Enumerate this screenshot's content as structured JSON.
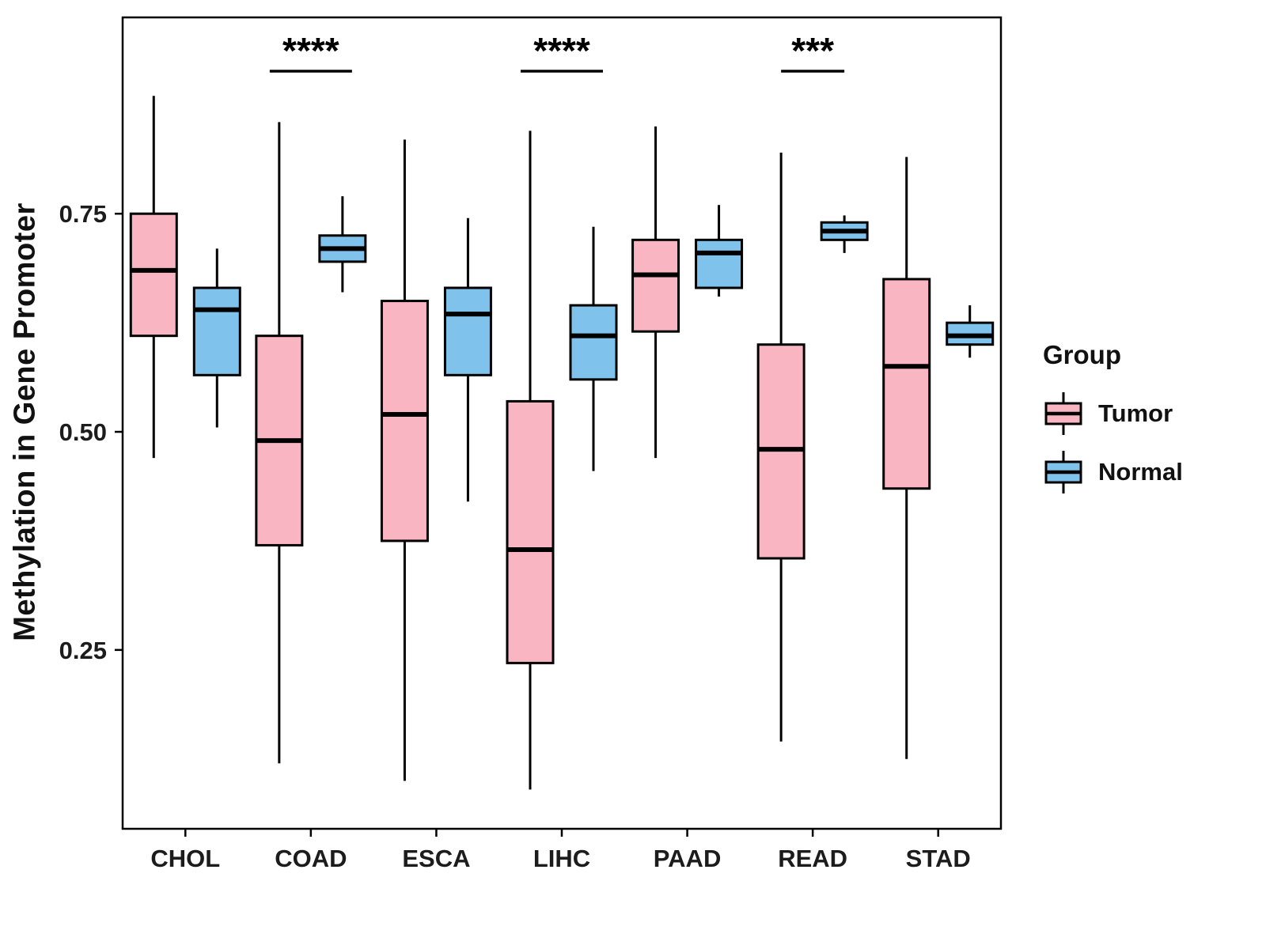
{
  "y_axis": {
    "label": "Methylation in Gene Promoter",
    "ticks": [
      0.25,
      0.5,
      0.75
    ],
    "tick_labels": [
      "0.25",
      "0.50",
      "0.75"
    ]
  },
  "x_axis": {
    "tick_labels": [
      "CHOL",
      "COAD",
      "ESCA",
      "LIHC",
      "PAAD",
      "READ",
      "STAD"
    ]
  },
  "legend": {
    "title": "Group",
    "items": [
      {
        "label": "Tumor",
        "color": "#F9B5C2"
      },
      {
        "label": "Normal",
        "color": "#7FC2EC"
      }
    ]
  },
  "colors": {
    "box_outline": "#000000",
    "median_line": "#000000",
    "axis_text": "#1c1c1c",
    "panel_border": "#000000",
    "tumor_fill": "#F9B5C2",
    "normal_fill": "#7FC2EC"
  },
  "chart_data": {
    "type": "boxplot",
    "title": "",
    "xlabel": "",
    "ylabel": "Methylation in Gene Promoter",
    "legend_position": "right",
    "grid": false,
    "ylim": [
      0.045,
      0.975
    ],
    "y_ticks": [
      0.25,
      0.5,
      0.75
    ],
    "categories": [
      "CHOL",
      "COAD",
      "ESCA",
      "LIHC",
      "PAAD",
      "READ",
      "STAD"
    ],
    "series": [
      {
        "name": "Tumor",
        "color": "#F9B5C2",
        "boxes": [
          {
            "category": "CHOL",
            "low": 0.47,
            "q1": 0.61,
            "median": 0.685,
            "q3": 0.75,
            "high": 0.885
          },
          {
            "category": "COAD",
            "low": 0.12,
            "q1": 0.37,
            "median": 0.49,
            "q3": 0.61,
            "high": 0.855
          },
          {
            "category": "ESCA",
            "low": 0.1,
            "q1": 0.375,
            "median": 0.52,
            "q3": 0.65,
            "high": 0.835
          },
          {
            "category": "LIHC",
            "low": 0.09,
            "q1": 0.235,
            "median": 0.365,
            "q3": 0.535,
            "high": 0.845
          },
          {
            "category": "PAAD",
            "low": 0.47,
            "q1": 0.615,
            "median": 0.68,
            "q3": 0.72,
            "high": 0.85
          },
          {
            "category": "READ",
            "low": 0.145,
            "q1": 0.355,
            "median": 0.48,
            "q3": 0.6,
            "high": 0.82
          },
          {
            "category": "STAD",
            "low": 0.125,
            "q1": 0.435,
            "median": 0.575,
            "q3": 0.675,
            "high": 0.815
          }
        ]
      },
      {
        "name": "Normal",
        "color": "#7FC2EC",
        "boxes": [
          {
            "category": "CHOL",
            "low": 0.505,
            "q1": 0.565,
            "median": 0.64,
            "q3": 0.665,
            "high": 0.71
          },
          {
            "category": "COAD",
            "low": 0.66,
            "q1": 0.695,
            "median": 0.71,
            "q3": 0.725,
            "high": 0.77
          },
          {
            "category": "ESCA",
            "low": 0.42,
            "q1": 0.565,
            "median": 0.635,
            "q3": 0.665,
            "high": 0.745
          },
          {
            "category": "LIHC",
            "low": 0.455,
            "q1": 0.56,
            "median": 0.61,
            "q3": 0.645,
            "high": 0.735
          },
          {
            "category": "PAAD",
            "low": 0.655,
            "q1": 0.665,
            "median": 0.705,
            "q3": 0.72,
            "high": 0.76
          },
          {
            "category": "READ",
            "low": 0.705,
            "q1": 0.72,
            "median": 0.73,
            "q3": 0.74,
            "high": 0.748
          },
          {
            "category": "STAD",
            "low": 0.585,
            "q1": 0.6,
            "median": 0.61,
            "q3": 0.625,
            "high": 0.645
          }
        ]
      }
    ],
    "significance": [
      {
        "category": "COAD",
        "label": "****"
      },
      {
        "category": "LIHC",
        "label": "****"
      },
      {
        "category": "READ",
        "label": "***"
      }
    ]
  }
}
